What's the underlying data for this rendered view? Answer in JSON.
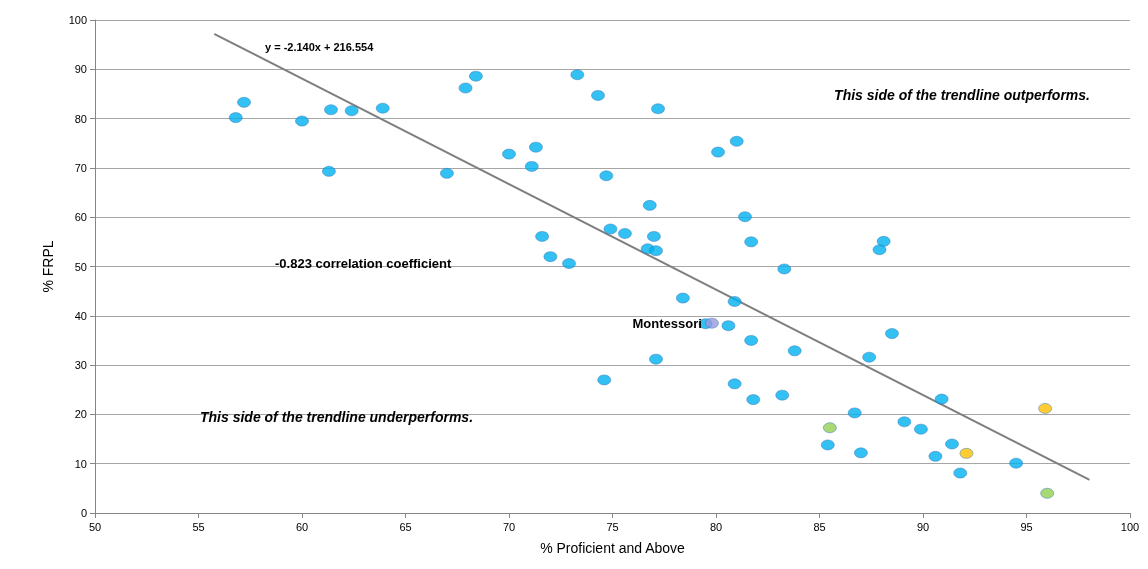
{
  "chart_data": {
    "type": "scatter",
    "xlabel": "% Proficient and Above",
    "ylabel": "% FRPL",
    "xlim": [
      50,
      100
    ],
    "xticks": [
      50,
      55,
      60,
      65,
      70,
      75,
      80,
      85,
      90,
      95,
      100
    ],
    "ylim": [
      0,
      100
    ],
    "yticks": [
      0,
      10,
      20,
      30,
      40,
      50,
      60,
      70,
      80,
      90,
      100
    ],
    "grid": "y",
    "marker": "circle",
    "series": [
      {
        "color": "#00b0f0",
        "x": [
          56.8,
          57.2,
          60,
          61.3,
          61.4,
          62.4,
          63.9,
          67,
          67.9,
          68.4,
          70,
          71.1,
          71.3,
          71.6,
          72,
          72.9,
          73.3,
          74.3,
          74.6,
          74.7,
          74.9,
          75.6,
          76.8,
          76.7,
          77,
          77.1,
          77.1,
          77.2,
          78.4,
          79.5,
          80.6,
          80.1,
          80.9,
          81,
          80.9,
          81.4,
          81.7,
          81.7,
          81.8,
          83.2,
          83.3,
          83.8,
          85.4,
          86.7,
          87,
          87.4,
          87.9,
          88.1,
          88.5,
          89.1,
          89.9,
          90.6,
          90.9,
          91.4,
          91.8,
          94.5
        ],
        "values": [
          80.2,
          83.3,
          79.5,
          69.3,
          81.8,
          81.6,
          82.1,
          68.9,
          86.2,
          88.6,
          72.8,
          70.3,
          74.2,
          56.1,
          52,
          50.6,
          88.9,
          84.7,
          27,
          68.4,
          57.6,
          56.7,
          62.4,
          53.6,
          56.1,
          53.2,
          31.2,
          82,
          43.6,
          38.4,
          38,
          73.2,
          26.2,
          75.4,
          42.9,
          60.1,
          35,
          55,
          23,
          23.9,
          49.5,
          32.9,
          13.8,
          20.3,
          12.2,
          31.6,
          53.4,
          55.1,
          36.4,
          18.5,
          17,
          11.5,
          23.1,
          14,
          8.1,
          10.1
        ]
      },
      {
        "color": "#9999dd",
        "x": [
          79.8
        ],
        "values": [
          38.5
        ]
      },
      {
        "color": "#92d050",
        "x": [
          85.5,
          96
        ],
        "values": [
          17.3,
          4
        ]
      },
      {
        "color": "#ffc000",
        "x": [
          95.9,
          92.1
        ],
        "values": [
          21.2,
          12.1
        ]
      },
      {
        "type": "line",
        "color": "#7f7f7f",
        "marker": "none",
        "x": [
          55.8,
          98
        ],
        "values": [
          97.1,
          6.8
        ]
      }
    ],
    "annotations": [
      "y = -2.140x + 216.554",
      "-0.823 correlation coefficient",
      "This side of the trendline outperforms.",
      "This side of the trendline underperforms.",
      {
        "text": "Montessori",
        "x": 79.8,
        "y": 38.5
      }
    ]
  }
}
